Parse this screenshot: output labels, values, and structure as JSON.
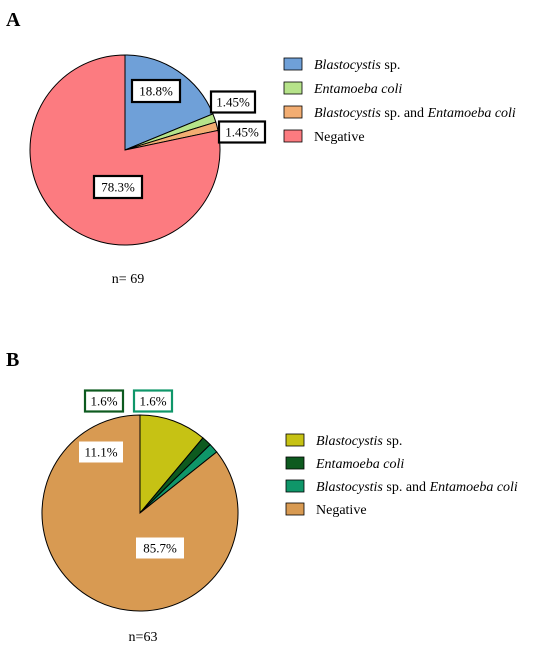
{
  "chart_data": [
    {
      "type": "pie",
      "panel": "A",
      "n_label": "n= 69",
      "categories": [
        "Blastocystis sp.",
        "Entamoeba coli",
        "Blastocystis sp. and Entamoeba coli",
        "Negative"
      ],
      "values": [
        18.8,
        1.45,
        1.45,
        78.3
      ],
      "value_labels": [
        "18.8%",
        "1.45%",
        "1.45%",
        "78.3%"
      ],
      "colors": [
        "#6fa0d8",
        "#b6e38a",
        "#f2ad72",
        "#fc7b80"
      ],
      "legend": [
        {
          "italic": "Blastocystis",
          "rest": " sp.",
          "italic2": "",
          "rest2": ""
        },
        {
          "italic": "Entamoeba coli",
          "rest": "",
          "italic2": "",
          "rest2": ""
        },
        {
          "italic": "Blastocystis",
          "rest": " sp. and ",
          "italic2": "Entamoeba coli",
          "rest2": ""
        },
        {
          "italic": "",
          "rest": "Negative",
          "italic2": "",
          "rest2": ""
        }
      ],
      "legend_placement": "right"
    },
    {
      "type": "pie",
      "panel": "B",
      "n_label": "n=63",
      "categories": [
        "Blastocystis sp.",
        "Entamoeba coli",
        "Blastocystis sp. and Entamoeba coli",
        "Negative"
      ],
      "values": [
        11.1,
        1.6,
        1.6,
        85.7
      ],
      "value_labels": [
        "11.1%",
        "1.6%",
        "1.6%",
        "85.7%"
      ],
      "colors": [
        "#c6c214",
        "#0d5a1f",
        "#0f9669",
        "#d89a52"
      ],
      "label_box_colors": [
        "#ffffff",
        "#0d5a1f",
        "#0f9669",
        "#ffffff"
      ],
      "legend": [
        {
          "italic": "Blastocystis",
          "rest": " sp.",
          "italic2": "",
          "rest2": ""
        },
        {
          "italic": "Entamoeba coli",
          "rest": "",
          "italic2": "",
          "rest2": ""
        },
        {
          "italic": "Blastocystis",
          "rest": " sp. and ",
          "italic2": "Entamoeba coli",
          "rest2": ""
        },
        {
          "italic": "",
          "rest": "Negative",
          "italic2": "",
          "rest2": ""
        }
      ],
      "legend_placement": "right"
    }
  ]
}
